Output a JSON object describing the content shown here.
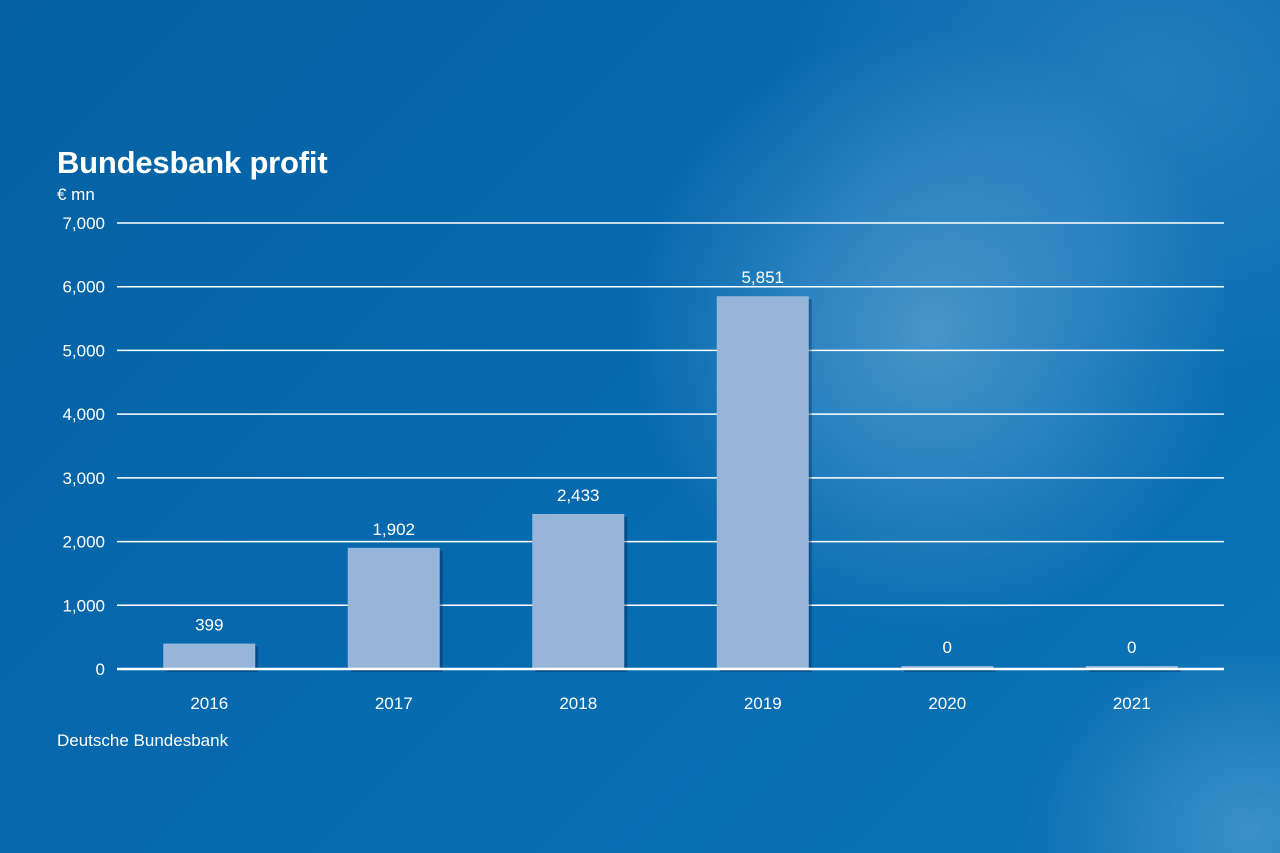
{
  "title": "Bundesbank profit",
  "unit_label": "€ mn",
  "source": "Deutsche Bundesbank",
  "colors": {
    "bar": "#97b4d9",
    "gridline": "#ffffff",
    "text": "#ffffff"
  },
  "chart_data": {
    "type": "bar",
    "title": "Bundesbank profit",
    "ylabel": "€ mn",
    "xlabel": "",
    "categories": [
      "2016",
      "2017",
      "2018",
      "2019",
      "2020",
      "2021"
    ],
    "values": [
      399,
      1902,
      2433,
      5851,
      0,
      0
    ],
    "value_labels": [
      "399",
      "1,902",
      "2,433",
      "5,851",
      "0",
      "0"
    ],
    "ylim": [
      0,
      7000
    ],
    "yticks": [
      0,
      1000,
      2000,
      3000,
      4000,
      5000,
      6000,
      7000
    ],
    "ytick_labels": [
      "0",
      "1,000",
      "2,000",
      "3,000",
      "4,000",
      "5,000",
      "6,000",
      "7,000"
    ],
    "grid": true,
    "legend": "none"
  }
}
